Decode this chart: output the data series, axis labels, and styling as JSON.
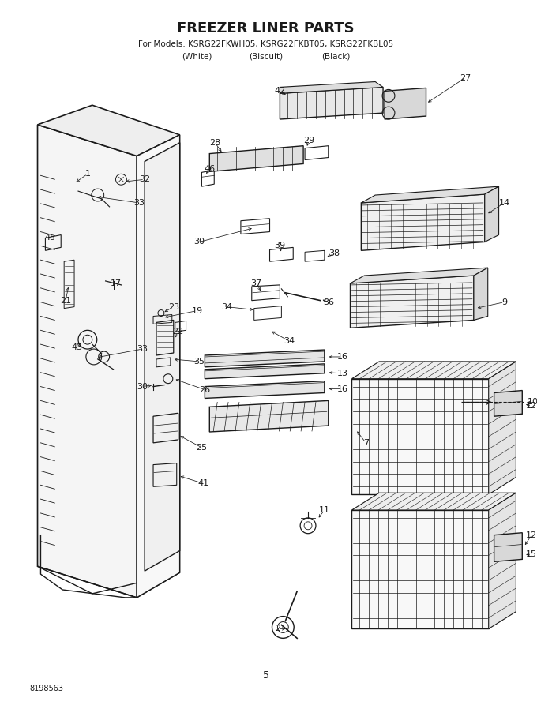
{
  "title": "FREEZER LINER PARTS",
  "subtitle_line1": "For Models: KSRG22FKWH05, KSRG22FKBT05, KSRG22FKBL05",
  "subtitle_line2a": "(White)",
  "subtitle_line2b": "(Biscuit)",
  "subtitle_line2c": "(Black)",
  "page_number": "5",
  "doc_number": "8198563",
  "bg_color": "#ffffff",
  "lc": "#1a1a1a"
}
